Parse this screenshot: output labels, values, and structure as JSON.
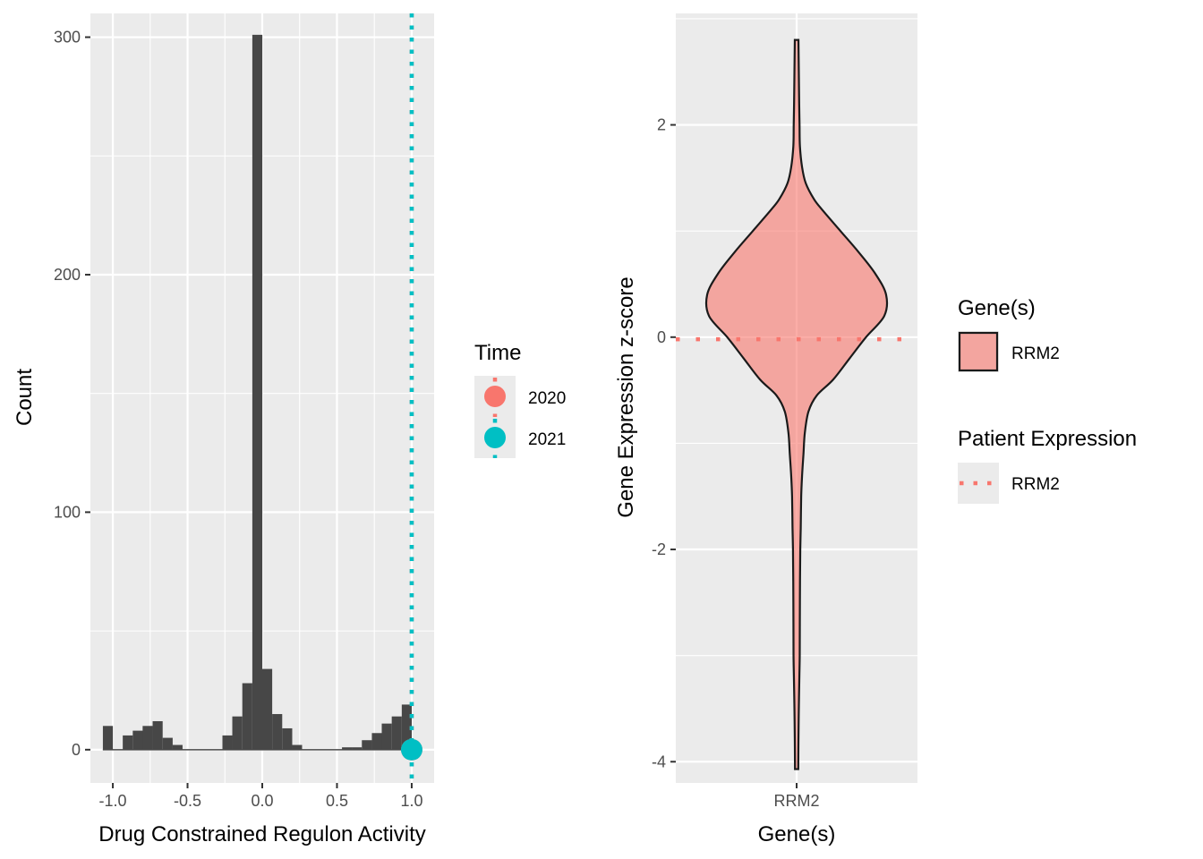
{
  "chart_data": [
    {
      "type": "bar",
      "subtype": "histogram",
      "xlabel": "Drug Constrained Regulon Activity",
      "ylabel": "Count",
      "xlim": [
        -1.15,
        1.15
      ],
      "ylim": [
        -14,
        310
      ],
      "x_ticks": [
        -1.0,
        -0.5,
        0.0,
        0.5,
        1.0
      ],
      "x_tick_labels": [
        "-1.0",
        "-0.5",
        "0.0",
        "0.5",
        "1.0"
      ],
      "y_ticks": [
        0,
        100,
        200,
        300
      ],
      "y_tick_labels": [
        "0",
        "100",
        "200",
        "300"
      ],
      "bin_width": 0.067,
      "bins": [
        {
          "center": -1.033,
          "count": 10
        },
        {
          "center": -0.967,
          "count": 0
        },
        {
          "center": -0.9,
          "count": 6
        },
        {
          "center": -0.833,
          "count": 8
        },
        {
          "center": -0.767,
          "count": 10
        },
        {
          "center": -0.7,
          "count": 12
        },
        {
          "center": -0.633,
          "count": 5
        },
        {
          "center": -0.567,
          "count": 2
        },
        {
          "center": -0.5,
          "count": 0
        },
        {
          "center": -0.433,
          "count": 0
        },
        {
          "center": -0.367,
          "count": 0
        },
        {
          "center": -0.3,
          "count": 0
        },
        {
          "center": -0.233,
          "count": 6
        },
        {
          "center": -0.167,
          "count": 14
        },
        {
          "center": -0.1,
          "count": 28
        },
        {
          "center": -0.033,
          "count": 301
        },
        {
          "center": 0.033,
          "count": 34
        },
        {
          "center": 0.1,
          "count": 15
        },
        {
          "center": 0.167,
          "count": 9
        },
        {
          "center": 0.233,
          "count": 2
        },
        {
          "center": 0.3,
          "count": 0
        },
        {
          "center": 0.367,
          "count": 0
        },
        {
          "center": 0.433,
          "count": 0
        },
        {
          "center": 0.5,
          "count": 0
        },
        {
          "center": 0.567,
          "count": 1
        },
        {
          "center": 0.633,
          "count": 1
        },
        {
          "center": 0.7,
          "count": 4
        },
        {
          "center": 0.767,
          "count": 7
        },
        {
          "center": 0.833,
          "count": 11
        },
        {
          "center": 0.9,
          "count": 14
        },
        {
          "center": 0.967,
          "count": 19
        },
        {
          "center": 1.033,
          "count": 0
        }
      ],
      "bar_color": "#474747",
      "patient_markers": [
        {
          "name": "2020",
          "x": 1.0,
          "y": 0,
          "color": "#F8766D"
        },
        {
          "name": "2021",
          "x": 1.0,
          "y": 0,
          "color": "#00BFC4"
        }
      ],
      "legend": {
        "title": "Time",
        "position": "right",
        "entries": [
          "2020",
          "2021"
        ]
      },
      "grid": true
    },
    {
      "type": "violin",
      "xlabel": "Gene(s)",
      "ylabel": "Gene Expression z-score",
      "categories": [
        "RRM2"
      ],
      "ylim": [
        -4.2,
        3.05
      ],
      "y_ticks": [
        -4,
        -2,
        0,
        2
      ],
      "y_tick_labels": [
        "-4",
        "-2",
        "0",
        "2"
      ],
      "fill_color": "#F8766D",
      "density": [
        {
          "y": 2.8,
          "w": 0.02
        },
        {
          "y": 2.5,
          "w": 0.024
        },
        {
          "y": 2.2,
          "w": 0.028
        },
        {
          "y": 2.0,
          "w": 0.032
        },
        {
          "y": 1.8,
          "w": 0.036
        },
        {
          "y": 1.6,
          "w": 0.06
        },
        {
          "y": 1.45,
          "w": 0.1
        },
        {
          "y": 1.3,
          "w": 0.19
        },
        {
          "y": 1.2,
          "w": 0.28
        },
        {
          "y": 1.0,
          "w": 0.48
        },
        {
          "y": 0.8,
          "w": 0.68
        },
        {
          "y": 0.6,
          "w": 0.86
        },
        {
          "y": 0.4,
          "w": 0.98
        },
        {
          "y": 0.2,
          "w": 0.96
        },
        {
          "y": 0.0,
          "w": 0.76
        },
        {
          "y": -0.2,
          "w": 0.58
        },
        {
          "y": -0.4,
          "w": 0.4
        },
        {
          "y": -0.55,
          "w": 0.22
        },
        {
          "y": -0.7,
          "w": 0.13
        },
        {
          "y": -0.9,
          "w": 0.09
        },
        {
          "y": -1.1,
          "w": 0.075
        },
        {
          "y": -1.3,
          "w": 0.06
        },
        {
          "y": -1.5,
          "w": 0.05
        },
        {
          "y": -1.8,
          "w": 0.045
        },
        {
          "y": -2.0,
          "w": 0.04
        },
        {
          "y": -2.3,
          "w": 0.037
        },
        {
          "y": -2.7,
          "w": 0.035
        },
        {
          "y": -3.0,
          "w": 0.034
        },
        {
          "y": -3.2,
          "w": 0.03
        },
        {
          "y": -3.5,
          "w": 0.024
        },
        {
          "y": -3.8,
          "w": 0.02
        },
        {
          "y": -4.07,
          "w": 0.018
        }
      ],
      "patient_expression": {
        "name": "RRM2",
        "y": -0.02,
        "color": "#F8766D",
        "style": "dotted"
      },
      "legend": [
        {
          "title": "Gene(s)",
          "entries": [
            "RRM2"
          ],
          "kind": "fill"
        },
        {
          "title": "Patient Expression",
          "entries": [
            "RRM2"
          ],
          "kind": "dotted-line"
        }
      ],
      "grid": true
    }
  ]
}
